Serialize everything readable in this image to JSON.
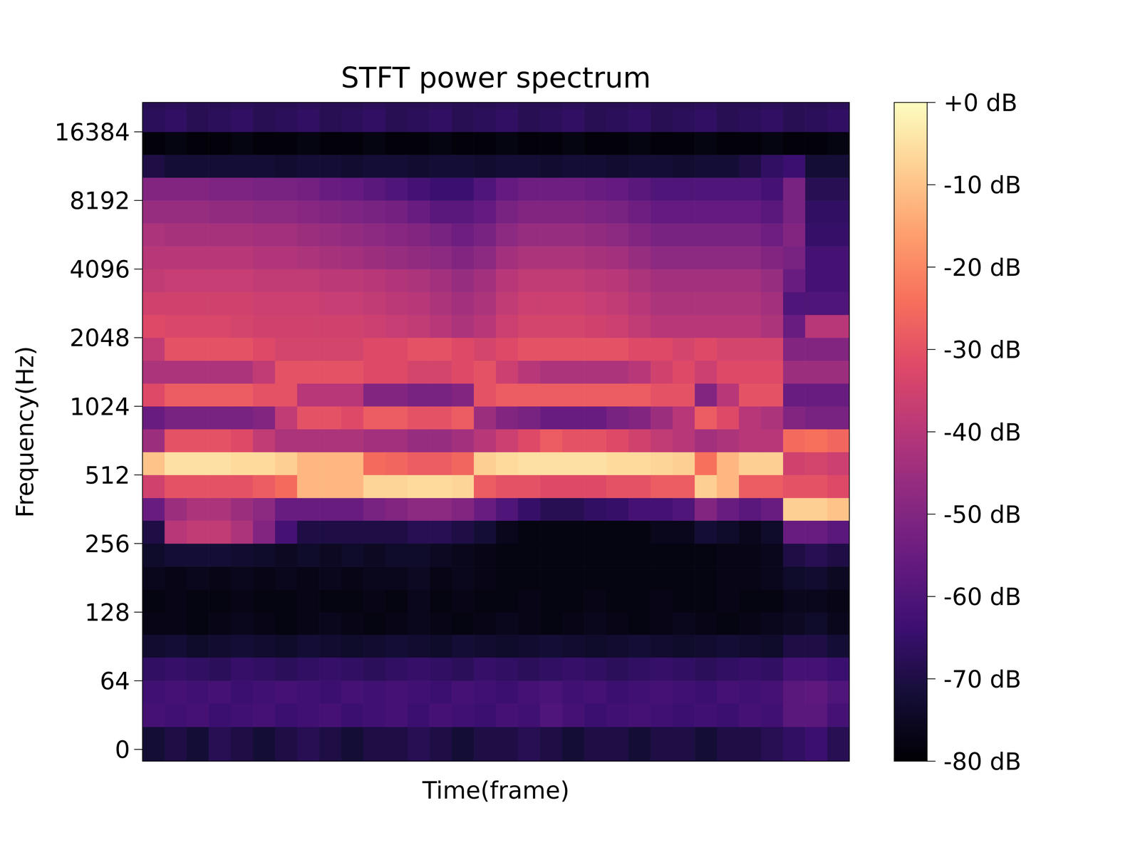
{
  "chart_data": {
    "type": "heatmap",
    "title": "STFT power spectrum",
    "x_label": "Time(frame)",
    "y_label": "Frequency(Hz)",
    "log": "y",
    "color": "magma",
    "tick_labels": "y",
    "xlim": [
      0,
      32
    ],
    "ylim": [
      -11,
      22050
    ],
    "yticks": [
      0,
      64,
      128,
      256,
      512,
      1024,
      2048,
      4096,
      8192,
      16384
    ],
    "y_edges": [
      -11,
      21,
      43,
      64,
      81,
      102,
      128,
      161,
      203,
      256,
      323,
      406,
      512,
      645,
      813,
      1024,
      1290,
      1625,
      2048,
      2580,
      3251,
      4096,
      5161,
      6502,
      8192,
      10321,
      13004,
      16384,
      20643,
      22050
    ],
    "zlim": [
      -80,
      0
    ],
    "zticks": [
      {
        "value": 0,
        "label": "+0 dB"
      },
      {
        "value": -10,
        "label": "-10 dB"
      },
      {
        "value": -20,
        "label": "-20 dB"
      },
      {
        "value": -30,
        "label": "-30 dB"
      },
      {
        "value": -40,
        "label": "-40 dB"
      },
      {
        "value": -50,
        "label": "-50 dB"
      },
      {
        "value": -60,
        "label": "-60 dB"
      },
      {
        "value": -70,
        "label": "-70 dB"
      },
      {
        "value": -80,
        "label": "-80 dB"
      }
    ],
    "z": [
      [
        -72,
        -70,
        -72,
        -68,
        -70,
        -72,
        -70,
        -68,
        -70,
        -72,
        -70,
        -70,
        -68,
        -70,
        -72,
        -70,
        -70,
        -68,
        -70,
        -72,
        -70,
        -70,
        -72,
        -70,
        -70,
        -72,
        -70,
        -70,
        -68,
        -66,
        -64,
        -68
      ],
      [
        -62,
        -63,
        -62,
        -64,
        -63,
        -62,
        -64,
        -63,
        -62,
        -64,
        -63,
        -62,
        -64,
        -62,
        -63,
        -64,
        -62,
        -63,
        -60,
        -62,
        -64,
        -63,
        -62,
        -63,
        -64,
        -63,
        -64,
        -62,
        -63,
        -58,
        -58,
        -62
      ],
      [
        -63,
        -62,
        -63,
        -62,
        -64,
        -63,
        -62,
        -63,
        -64,
        -62,
        -63,
        -62,
        -63,
        -64,
        -62,
        -63,
        -64,
        -62,
        -61,
        -63,
        -62,
        -64,
        -63,
        -62,
        -63,
        -64,
        -62,
        -63,
        -62,
        -58,
        -57,
        -60
      ],
      [
        -66,
        -65,
        -66,
        -67,
        -65,
        -66,
        -67,
        -66,
        -65,
        -66,
        -67,
        -66,
        -65,
        -66,
        -67,
        -65,
        -66,
        -67,
        -66,
        -65,
        -66,
        -67,
        -66,
        -65,
        -66,
        -67,
        -66,
        -65,
        -66,
        -62,
        -62,
        -64
      ],
      [
        -73,
        -72,
        -74,
        -73,
        -72,
        -73,
        -74,
        -72,
        -73,
        -74,
        -73,
        -72,
        -73,
        -74,
        -72,
        -73,
        -74,
        -73,
        -72,
        -73,
        -74,
        -73,
        -72,
        -73,
        -74,
        -73,
        -72,
        -73,
        -74,
        -70,
        -70,
        -72
      ],
      [
        -77,
        -77,
        -78,
        -77,
        -76,
        -77,
        -78,
        -77,
        -76,
        -77,
        -78,
        -77,
        -76,
        -77,
        -78,
        -77,
        -76,
        -77,
        -78,
        -77,
        -76,
        -77,
        -78,
        -77,
        -76,
        -77,
        -78,
        -77,
        -76,
        -75,
        -74,
        -76
      ],
      [
        -78,
        -77,
        -78,
        -78,
        -77,
        -78,
        -78,
        -77,
        -78,
        -78,
        -77,
        -78,
        -76,
        -78,
        -77,
        -78,
        -78,
        -77,
        -78,
        -78,
        -77,
        -78,
        -78,
        -77,
        -78,
        -78,
        -77,
        -78,
        -78,
        -76,
        -76,
        -77
      ],
      [
        -76,
        -77,
        -76,
        -77,
        -76,
        -77,
        -76,
        -77,
        -76,
        -77,
        -76,
        -76,
        -75,
        -77,
        -76,
        -77,
        -78,
        -78,
        -78,
        -78,
        -78,
        -78,
        -78,
        -78,
        -78,
        -78,
        -77,
        -77,
        -76,
        -74,
        -73,
        -75
      ],
      [
        -74,
        -72,
        -72,
        -72,
        -73,
        -74,
        -75,
        -74,
        -75,
        -74,
        -75,
        -74,
        -74,
        -75,
        -76,
        -77,
        -78,
        -78,
        -78,
        -78,
        -78,
        -78,
        -78,
        -78,
        -78,
        -78,
        -77,
        -77,
        -76,
        -70,
        -68,
        -70
      ],
      [
        -70,
        -40,
        -38,
        -38,
        -42,
        -50,
        -62,
        -70,
        -70,
        -70,
        -70,
        -70,
        -68,
        -68,
        -70,
        -72,
        -76,
        -78,
        -78,
        -78,
        -78,
        -78,
        -78,
        -76,
        -76,
        -72,
        -74,
        -76,
        -74,
        -55,
        -55,
        -58
      ],
      [
        -55,
        -45,
        -42,
        -42,
        -45,
        -48,
        -55,
        -55,
        -55,
        -55,
        -52,
        -50,
        -48,
        -48,
        -50,
        -55,
        -60,
        -65,
        -68,
        -68,
        -66,
        -65,
        -62,
        -62,
        -60,
        -50,
        -55,
        -58,
        -55,
        -8,
        -8,
        -10
      ],
      [
        -35,
        -30,
        -30,
        -30,
        -30,
        -28,
        -25,
        -12,
        -12,
        -12,
        -7,
        -7,
        -6,
        -6,
        -7,
        -28,
        -30,
        -30,
        -32,
        -32,
        -32,
        -30,
        -30,
        -28,
        -28,
        -8,
        -12,
        -28,
        -28,
        -30,
        -30,
        -32
      ],
      [
        -10,
        -5,
        -5,
        -5,
        -6,
        -6,
        -8,
        -12,
        -12,
        -12,
        -25,
        -26,
        -28,
        -28,
        -26,
        -8,
        -6,
        -5,
        -5,
        -5,
        -5,
        -6,
        -6,
        -7,
        -8,
        -24,
        -12,
        -8,
        -8,
        -35,
        -34,
        -36
      ],
      [
        -45,
        -30,
        -30,
        -30,
        -32,
        -38,
        -42,
        -42,
        -42,
        -42,
        -44,
        -44,
        -46,
        -46,
        -44,
        -40,
        -36,
        -32,
        -28,
        -30,
        -30,
        -32,
        -35,
        -38,
        -40,
        -44,
        -42,
        -40,
        -40,
        -25,
        -24,
        -26
      ],
      [
        -55,
        -52,
        -52,
        -52,
        -52,
        -50,
        -38,
        -30,
        -30,
        -32,
        -28,
        -28,
        -30,
        -30,
        -28,
        -45,
        -50,
        -52,
        -55,
        -55,
        -55,
        -52,
        -50,
        -45,
        -40,
        -28,
        -32,
        -40,
        -42,
        -50,
        -52,
        -52
      ],
      [
        -32,
        -28,
        -28,
        -28,
        -28,
        -30,
        -30,
        -40,
        -40,
        -40,
        -50,
        -50,
        -52,
        -52,
        -50,
        -30,
        -28,
        -28,
        -28,
        -28,
        -28,
        -28,
        -28,
        -30,
        -30,
        -50,
        -40,
        -30,
        -30,
        -55,
        -55,
        -55
      ],
      [
        -42,
        -42,
        -42,
        -42,
        -42,
        -38,
        -30,
        -30,
        -30,
        -30,
        -32,
        -32,
        -34,
        -34,
        -32,
        -30,
        -36,
        -40,
        -42,
        -42,
        -42,
        -42,
        -40,
        -35,
        -32,
        -36,
        -32,
        -32,
        -32,
        -45,
        -45,
        -45
      ],
      [
        -38,
        -30,
        -30,
        -30,
        -30,
        -32,
        -34,
        -34,
        -34,
        -34,
        -32,
        -32,
        -30,
        -30,
        -32,
        -34,
        -32,
        -30,
        -30,
        -30,
        -30,
        -30,
        -32,
        -32,
        -34,
        -32,
        -34,
        -34,
        -34,
        -50,
        -50,
        -50
      ],
      [
        -32,
        -33,
        -33,
        -33,
        -34,
        -35,
        -35,
        -35,
        -35,
        -35,
        -36,
        -37,
        -38,
        -40,
        -42,
        -40,
        -36,
        -34,
        -34,
        -34,
        -35,
        -36,
        -38,
        -40,
        -40,
        -40,
        -40,
        -40,
        -42,
        -55,
        -40,
        -40
      ],
      [
        -35,
        -35,
        -35,
        -35,
        -35,
        -36,
        -36,
        -36,
        -37,
        -37,
        -38,
        -39,
        -40,
        -42,
        -44,
        -42,
        -38,
        -36,
        -36,
        -36,
        -37,
        -38,
        -40,
        -42,
        -42,
        -42,
        -42,
        -42,
        -44,
        -60,
        -60,
        -60
      ],
      [
        -38,
        -37,
        -37,
        -37,
        -37,
        -38,
        -38,
        -38,
        -39,
        -39,
        -40,
        -41,
        -42,
        -44,
        -46,
        -44,
        -40,
        -38,
        -38,
        -38,
        -39,
        -40,
        -42,
        -44,
        -44,
        -44,
        -44,
        -44,
        -46,
        -55,
        -62,
        -62
      ],
      [
        -40,
        -40,
        -40,
        -40,
        -40,
        -41,
        -41,
        -42,
        -43,
        -44,
        -45,
        -46,
        -47,
        -48,
        -50,
        -48,
        -44,
        -42,
        -42,
        -42,
        -43,
        -44,
        -46,
        -48,
        -48,
        -48,
        -48,
        -48,
        -50,
        -52,
        -62,
        -62
      ],
      [
        -42,
        -43,
        -43,
        -43,
        -43,
        -44,
        -44,
        -45,
        -46,
        -47,
        -48,
        -49,
        -50,
        -52,
        -54,
        -52,
        -48,
        -46,
        -46,
        -46,
        -47,
        -48,
        -50,
        -52,
        -52,
        -52,
        -52,
        -52,
        -54,
        -50,
        -65,
        -65
      ],
      [
        -46,
        -46,
        -46,
        -47,
        -47,
        -48,
        -48,
        -49,
        -50,
        -51,
        -52,
        -53,
        -55,
        -58,
        -58,
        -56,
        -52,
        -50,
        -50,
        -50,
        -51,
        -52,
        -54,
        -56,
        -56,
        -56,
        -56,
        -56,
        -58,
        -52,
        -66,
        -66
      ],
      [
        -50,
        -50,
        -50,
        -51,
        -51,
        -52,
        -52,
        -53,
        -55,
        -56,
        -58,
        -60,
        -62,
        -64,
        -64,
        -60,
        -56,
        -54,
        -54,
        -54,
        -55,
        -56,
        -58,
        -60,
        -60,
        -60,
        -60,
        -60,
        -62,
        -52,
        -68,
        -68
      ],
      [
        -70,
        -72,
        -72,
        -72,
        -72,
        -72,
        -73,
        -72,
        -72,
        -73,
        -72,
        -72,
        -73,
        -72,
        -72,
        -73,
        -72,
        -72,
        -73,
        -72,
        -72,
        -73,
        -72,
        -72,
        -73,
        -72,
        -72,
        -70,
        -66,
        -64,
        -72,
        -72
      ],
      [
        -79,
        -78,
        -79,
        -79,
        -78,
        -79,
        -79,
        -78,
        -79,
        -79,
        -78,
        -79,
        -79,
        -78,
        -79,
        -79,
        -78,
        -79,
        -79,
        -78,
        -79,
        -79,
        -78,
        -79,
        -79,
        -78,
        -79,
        -79,
        -78,
        -79,
        -79,
        -78
      ],
      [
        -67,
        -66,
        -68,
        -67,
        -66,
        -68,
        -67,
        -66,
        -68,
        -67,
        -66,
        -68,
        -67,
        -66,
        -68,
        -67,
        -66,
        -68,
        -67,
        -66,
        -68,
        -67,
        -66,
        -68,
        -67,
        -66,
        -68,
        -67,
        -66,
        -68,
        -67,
        -66
      ],
      [
        -68,
        -67,
        -68,
        -68,
        -67,
        -68,
        -68,
        -67,
        -68,
        -68,
        -67,
        -68,
        -68,
        -67,
        -68,
        -68,
        -67,
        -68,
        -68,
        -67,
        -68,
        -68,
        -67,
        -68,
        -68,
        -67,
        -68,
        -68,
        -67,
        -68,
        -68,
        -67
      ]
    ]
  }
}
